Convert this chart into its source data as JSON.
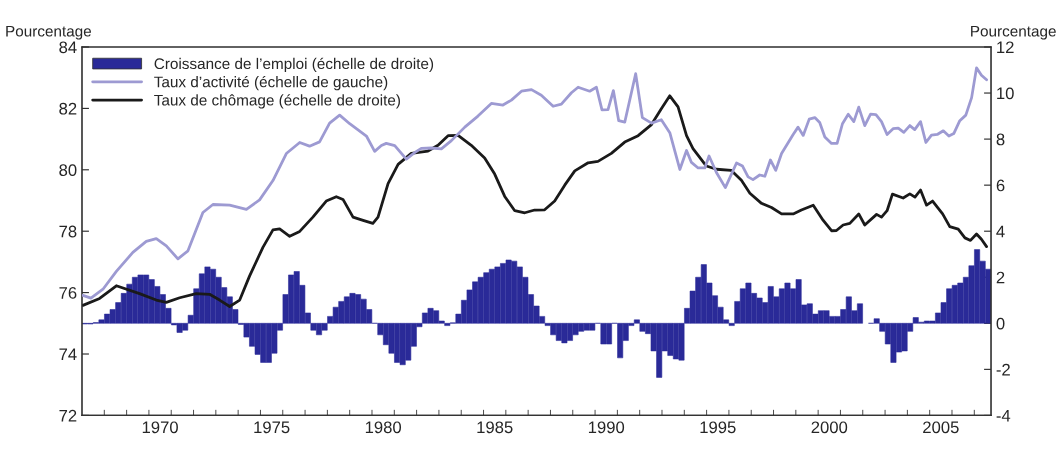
{
  "chart_data": {
    "type": "bar",
    "ylabel": "Pourcentage",
    "y2label": "Pourcentage",
    "xlim": [
      1967,
      2007.75
    ],
    "xticks": [
      {
        "value": 1968,
        "label": null
      },
      {
        "value": 1969,
        "label": null
      },
      {
        "value": 1970,
        "label": null
      },
      {
        "value": 1971,
        "label": null
      },
      {
        "value": 1972,
        "label": null
      },
      {
        "value": 1973,
        "label": null
      },
      {
        "value": 1974,
        "label": null
      },
      {
        "value": 1975,
        "label": null
      },
      {
        "value": 1976,
        "label": null
      },
      {
        "value": 1977,
        "label": null
      },
      {
        "value": 1978,
        "label": null
      },
      {
        "value": 1979,
        "label": null
      },
      {
        "value": 1980,
        "label": null
      },
      {
        "value": 1981,
        "label": null
      },
      {
        "value": 1982,
        "label": null
      },
      {
        "value": 1983,
        "label": null
      },
      {
        "value": 1984,
        "label": null
      },
      {
        "value": 1985,
        "label": null
      },
      {
        "value": 1986,
        "label": null
      },
      {
        "value": 1987,
        "label": null
      },
      {
        "value": 1988,
        "label": null
      },
      {
        "value": 1989,
        "label": null
      },
      {
        "value": 1990,
        "label": null
      },
      {
        "value": 1991,
        "label": null
      },
      {
        "value": 1992,
        "label": null
      },
      {
        "value": 1993,
        "label": null
      },
      {
        "value": 1994,
        "label": null
      },
      {
        "value": 1995,
        "label": null
      },
      {
        "value": 1996,
        "label": null
      },
      {
        "value": 1997,
        "label": null
      },
      {
        "value": 1998,
        "label": null
      },
      {
        "value": 1999,
        "label": null
      },
      {
        "value": 2000,
        "label": null
      },
      {
        "value": 2001,
        "label": null
      },
      {
        "value": 2002,
        "label": null
      },
      {
        "value": 2003,
        "label": null
      },
      {
        "value": 2004,
        "label": null
      },
      {
        "value": 2005,
        "label": null
      },
      {
        "value": 2006,
        "label": null
      },
      {
        "value": 2007,
        "label": null
      },
      {
        "value": 1970.5,
        "label": "1970"
      },
      {
        "value": 1975.5,
        "label": "1975"
      },
      {
        "value": 1980.5,
        "label": "1980"
      },
      {
        "value": 1985.5,
        "label": "1985"
      },
      {
        "value": 1990.5,
        "label": "1990"
      },
      {
        "value": 1995.5,
        "label": "1995"
      },
      {
        "value": 2000.5,
        "label": "2000"
      },
      {
        "value": 2005.5,
        "label": "2005"
      }
    ],
    "ylim": [
      72,
      84
    ],
    "yticks": [
      72,
      74,
      76,
      78,
      80,
      82,
      84
    ],
    "y2lim": [
      -4,
      12
    ],
    "y2ticks": [
      -4,
      -2,
      0,
      2,
      4,
      6,
      8,
      10,
      12
    ],
    "legend": "top left",
    "grid": false,
    "series": [
      {
        "name": "Croissance de l’emploi (échelle de droite)",
        "axis": "y2",
        "color": "#2a2a98",
        "x": [
          1967.125,
          1967.375,
          1967.625,
          1967.875,
          1968.125,
          1968.375,
          1968.625,
          1968.875,
          1969.125,
          1969.375,
          1969.625,
          1969.875,
          1970.125,
          1970.375,
          1970.625,
          1970.875,
          1971.125,
          1971.375,
          1971.625,
          1971.875,
          1972.125,
          1972.375,
          1972.625,
          1972.875,
          1973.125,
          1973.375,
          1973.625,
          1973.875,
          1974.125,
          1974.375,
          1974.625,
          1974.875,
          1975.125,
          1975.375,
          1975.625,
          1975.875,
          1976.125,
          1976.375,
          1976.625,
          1976.875,
          1977.125,
          1977.375,
          1977.625,
          1977.875,
          1978.125,
          1978.375,
          1978.625,
          1978.875,
          1979.125,
          1979.375,
          1979.625,
          1979.875,
          1980.125,
          1980.375,
          1980.625,
          1980.875,
          1981.125,
          1981.375,
          1981.625,
          1981.875,
          1982.125,
          1982.375,
          1982.625,
          1982.875,
          1983.125,
          1983.375,
          1983.625,
          1983.875,
          1984.125,
          1984.375,
          1984.625,
          1984.875,
          1985.125,
          1985.375,
          1985.625,
          1985.875,
          1986.125,
          1986.375,
          1986.625,
          1986.875,
          1987.125,
          1987.375,
          1987.625,
          1987.875,
          1988.125,
          1988.375,
          1988.625,
          1988.875,
          1989.125,
          1989.375,
          1989.625,
          1989.875,
          1990.125,
          1990.375,
          1990.625,
          1990.875,
          1991.125,
          1991.375,
          1991.625,
          1991.875,
          1992.125,
          1992.375,
          1992.625,
          1992.875,
          1993.125,
          1993.375,
          1993.625,
          1993.875,
          1994.125,
          1994.375,
          1994.625,
          1994.875,
          1995.125,
          1995.375,
          1995.625,
          1995.875,
          1996.125,
          1996.375,
          1996.625,
          1996.875,
          1997.125,
          1997.375,
          1997.625,
          1997.875,
          1998.125,
          1998.375,
          1998.625,
          1998.875,
          1999.125,
          1999.375,
          1999.625,
          1999.875,
          2000.125,
          2000.375,
          2000.625,
          2000.875,
          2001.125,
          2001.375,
          2001.625,
          2001.875,
          2002.125,
          2002.375,
          2002.625,
          2002.875,
          2003.125,
          2003.375,
          2003.625,
          2003.875,
          2004.125,
          2004.375,
          2004.625,
          2004.875,
          2005.125,
          2005.375,
          2005.625,
          2005.875,
          2006.125,
          2006.375,
          2006.625,
          2006.875,
          2007.125,
          2007.375,
          2007.625
        ],
        "values": [
          -0.03,
          -0.03,
          0.03,
          0.15,
          0.4,
          0.6,
          0.9,
          1.3,
          1.7,
          2.0,
          2.1,
          2.1,
          1.9,
          1.6,
          1.25,
          0.65,
          -0.07,
          -0.4,
          -0.3,
          0.35,
          1.5,
          2.15,
          2.45,
          2.35,
          2.0,
          1.55,
          1.15,
          0.6,
          -0.05,
          -0.6,
          -1.0,
          -1.35,
          -1.7,
          -1.7,
          -1.3,
          -0.3,
          1.25,
          2.1,
          2.25,
          1.65,
          0.45,
          -0.3,
          -0.5,
          -0.3,
          0.3,
          0.7,
          0.95,
          1.15,
          1.3,
          1.25,
          1.05,
          0.6,
          0.0,
          -0.5,
          -0.93,
          -1.3,
          -1.7,
          -1.8,
          -1.6,
          -1.0,
          -0.15,
          0.45,
          0.65,
          0.55,
          0.1,
          -0.1,
          0.02,
          0.4,
          1.0,
          1.45,
          1.8,
          2.0,
          2.2,
          2.35,
          2.45,
          2.6,
          2.75,
          2.7,
          2.45,
          2.0,
          1.25,
          0.75,
          0.3,
          -0.1,
          -0.5,
          -0.75,
          -0.85,
          -0.75,
          -0.5,
          -0.35,
          -0.3,
          -0.3,
          0.0,
          -0.9,
          -0.9,
          0.0,
          -1.5,
          -0.75,
          -0.1,
          0.15,
          -0.35,
          -0.45,
          -1.2,
          -2.35,
          -1.2,
          -1.4,
          -1.55,
          -1.6,
          0.65,
          1.4,
          2.0,
          2.55,
          1.75,
          1.2,
          0.7,
          0.15,
          -0.1,
          0.95,
          1.5,
          1.75,
          1.3,
          1.1,
          0.9,
          1.6,
          1.15,
          1.5,
          1.75,
          1.5,
          1.9,
          0.8,
          0.85,
          0.4,
          0.55,
          0.55,
          0.3,
          0.3,
          0.6,
          1.15,
          0.55,
          0.85,
          null,
          0.0,
          0.2,
          -0.35,
          -0.9,
          -1.7,
          -1.25,
          -1.2,
          -0.35,
          0.25,
          0.05,
          0.1,
          0.1,
          0.45,
          0.9,
          1.5,
          1.65,
          1.75,
          2.0,
          2.5,
          3.2,
          2.7,
          2.35
        ]
      },
      {
        "name": "Taux d’activité (échelle de gauche)",
        "type": "line",
        "axis": "y",
        "color": "#9d9ad2",
        "x": [
          1967.04,
          1967.4,
          1967.94,
          1968.54,
          1969.28,
          1969.88,
          1970.33,
          1970.78,
          1971.3,
          1971.75,
          1972.42,
          1972.87,
          1973.62,
          1974.37,
          1974.96,
          1975.56,
          1976.16,
          1976.76,
          1977.2,
          1977.65,
          1978.1,
          1978.55,
          1979.0,
          1979.75,
          1980.12,
          1980.42,
          1980.64,
          1981.02,
          1981.54,
          1981.91,
          1982.21,
          1982.66,
          1983.11,
          1983.56,
          1984.16,
          1984.75,
          1985.35,
          1985.87,
          1986.25,
          1986.7,
          1987.15,
          1987.59,
          1988.12,
          1988.49,
          1988.94,
          1989.24,
          1989.76,
          1990.06,
          1990.31,
          1990.58,
          1990.82,
          1991.06,
          1991.33,
          1991.82,
          1992.12,
          1992.53,
          1992.97,
          1993.35,
          1993.8,
          1994.1,
          1994.32,
          1994.62,
          1994.92,
          1995.11,
          1995.44,
          1995.84,
          1996.34,
          1996.61,
          1996.86,
          1997.08,
          1997.38,
          1997.61,
          1997.86,
          1998.1,
          1998.36,
          1998.88,
          1999.1,
          1999.33,
          1999.6,
          1999.85,
          2000.07,
          2000.3,
          2000.6,
          2000.85,
          2001.09,
          2001.35,
          2001.6,
          2001.82,
          2002.09,
          2002.35,
          2002.59,
          2002.84,
          2003.09,
          2003.36,
          2003.59,
          2003.84,
          2004.11,
          2004.33,
          2004.59,
          2004.83,
          2005.08,
          2005.34,
          2005.61,
          2005.86,
          2006.08,
          2006.35,
          2006.62,
          2006.88,
          2007.1,
          2007.32,
          2007.55
        ],
        "values": [
          75.91,
          75.82,
          76.11,
          76.69,
          77.31,
          77.67,
          77.76,
          77.52,
          77.1,
          77.36,
          78.61,
          78.87,
          78.85,
          78.71,
          79.02,
          79.65,
          80.53,
          80.89,
          80.77,
          80.91,
          81.52,
          81.78,
          81.5,
          81.1,
          80.6,
          80.79,
          80.86,
          80.79,
          80.35,
          80.56,
          80.7,
          80.71,
          80.68,
          80.95,
          81.39,
          81.75,
          82.16,
          82.11,
          82.27,
          82.56,
          82.61,
          82.43,
          82.07,
          82.14,
          82.51,
          82.69,
          82.56,
          82.69,
          81.95,
          81.96,
          82.58,
          81.6,
          81.55,
          83.13,
          81.7,
          81.52,
          81.63,
          81.21,
          80.01,
          80.63,
          80.24,
          80.06,
          80.06,
          80.45,
          79.91,
          79.42,
          80.22,
          80.12,
          79.77,
          79.68,
          79.83,
          79.79,
          80.32,
          79.98,
          80.53,
          81.15,
          81.39,
          81.12,
          81.65,
          81.7,
          81.54,
          81.07,
          80.86,
          80.86,
          81.5,
          81.81,
          81.57,
          82.04,
          81.44,
          81.81,
          81.8,
          81.57,
          81.15,
          81.34,
          81.36,
          81.22,
          81.44,
          81.31,
          81.57,
          80.89,
          81.13,
          81.15,
          81.27,
          81.1,
          81.18,
          81.6,
          81.78,
          82.35,
          83.32,
          83.08,
          82.93
        ]
      },
      {
        "name": "Taux de chômage (échelle de droite)",
        "type": "line",
        "axis": "y2",
        "color": "#1a1a1a",
        "x": [
          1967.04,
          1967.79,
          1968.54,
          1969.58,
          1970.33,
          1970.78,
          1971.38,
          1972.12,
          1972.72,
          1973.17,
          1973.62,
          1974.07,
          1974.51,
          1975.11,
          1975.56,
          1975.86,
          1976.31,
          1976.76,
          1977.35,
          1977.95,
          1978.4,
          1978.7,
          1979.15,
          1979.6,
          1980.04,
          1980.27,
          1980.72,
          1981.17,
          1981.76,
          1982.51,
          1982.96,
          1983.41,
          1983.86,
          1984.45,
          1985.05,
          1985.5,
          1985.95,
          1986.4,
          1986.85,
          1987.29,
          1987.74,
          1988.19,
          1988.64,
          1989.09,
          1989.69,
          1990.13,
          1990.73,
          1991.33,
          1991.93,
          1992.53,
          1992.97,
          1993.35,
          1993.72,
          1994.1,
          1994.39,
          1994.99,
          1995.44,
          1996.11,
          1996.56,
          1996.94,
          1997.46,
          1997.91,
          1998.36,
          1998.88,
          1999.25,
          1999.78,
          2000.22,
          2000.6,
          2000.82,
          2001.12,
          2001.42,
          2001.82,
          2002.09,
          2002.62,
          2002.84,
          2003.09,
          2003.33,
          2003.81,
          2004.11,
          2004.34,
          2004.59,
          2004.86,
          2005.13,
          2005.58,
          2005.9,
          2006.28,
          2006.58,
          2006.83,
          2007.1,
          2007.32,
          2007.55
        ],
        "values": [
          0.78,
          1.08,
          1.63,
          1.29,
          1.01,
          0.91,
          1.11,
          1.29,
          1.26,
          1.01,
          0.73,
          1.01,
          2.05,
          3.3,
          4.06,
          4.1,
          3.78,
          3.99,
          4.61,
          5.31,
          5.5,
          5.38,
          4.61,
          4.47,
          4.34,
          4.61,
          6.07,
          6.9,
          7.38,
          7.48,
          7.73,
          8.15,
          8.16,
          7.73,
          7.18,
          6.48,
          5.51,
          4.89,
          4.8,
          4.92,
          4.93,
          5.31,
          6.0,
          6.62,
          6.97,
          7.03,
          7.38,
          7.87,
          8.15,
          8.63,
          9.32,
          9.88,
          9.4,
          8.15,
          7.59,
          6.83,
          6.69,
          6.64,
          6.21,
          5.65,
          5.21,
          5.03,
          4.75,
          4.75,
          4.92,
          5.13,
          4.48,
          4.02,
          4.03,
          4.27,
          4.34,
          4.75,
          4.27,
          4.73,
          4.61,
          4.89,
          5.61,
          5.44,
          5.62,
          5.48,
          5.79,
          5.13,
          5.31,
          4.75,
          4.2,
          4.09,
          3.71,
          3.6,
          3.88,
          3.65,
          3.33
        ]
      }
    ]
  }
}
